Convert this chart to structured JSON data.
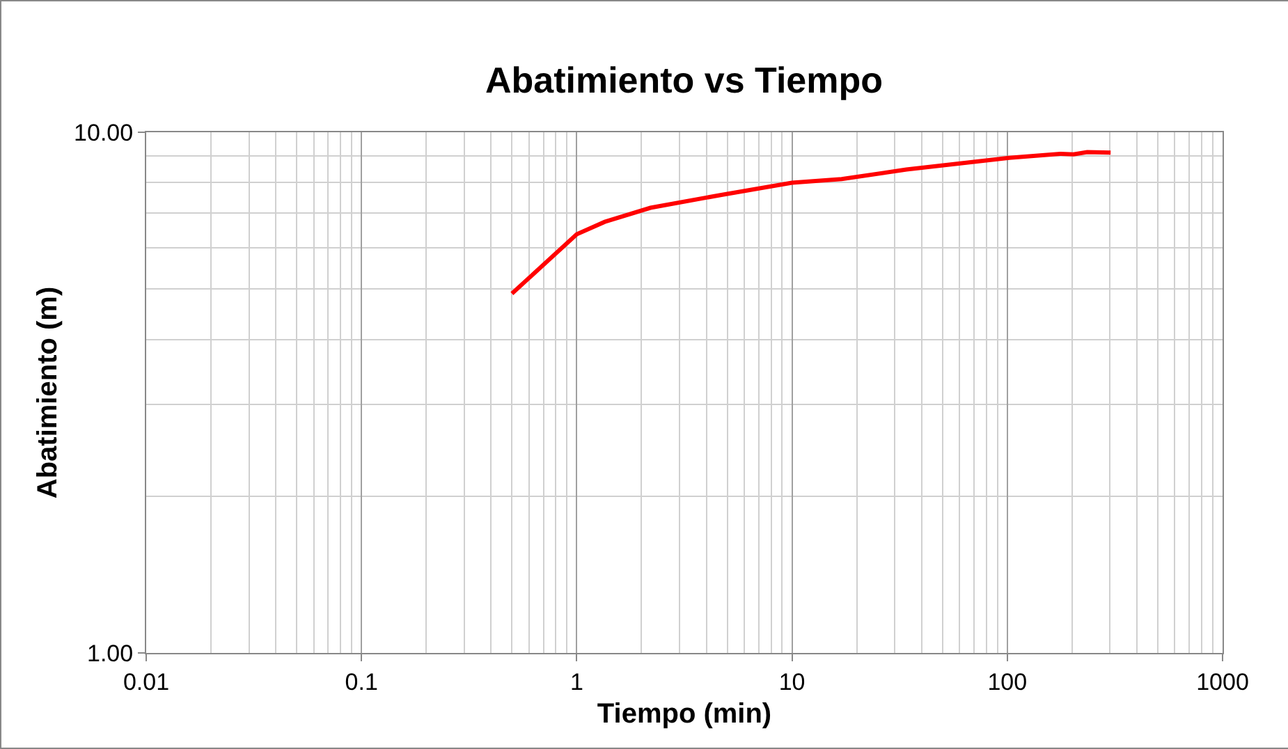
{
  "chart_data": {
    "type": "line",
    "title": "Abatimiento vs Tiempo",
    "xlabel": "Tiempo (min)",
    "ylabel": "Abatimiento (m)",
    "x": [
      0.5,
      1,
      1.35,
      2.2,
      4.7,
      10,
      17,
      34,
      102,
      176,
      203,
      235,
      302
    ],
    "series": [
      {
        "color": "#ff0000",
        "values": [
          4.9,
          6.37,
          6.73,
          7.16,
          7.58,
          8,
          8.13,
          8.48,
          8.93,
          9.09,
          9.07,
          9.16,
          9.14
        ]
      }
    ],
    "log": "xy",
    "xlim": [
      0.01,
      1000
    ],
    "ylim": [
      1,
      10
    ],
    "xticks": [
      0.01,
      0.1,
      1,
      10,
      100,
      1000
    ],
    "yticks": [
      {
        "value": 1,
        "label": "1.00"
      },
      {
        "value": 10,
        "label": "10.00"
      }
    ],
    "grid": true,
    "marker": "none",
    "line_style": "solid"
  }
}
